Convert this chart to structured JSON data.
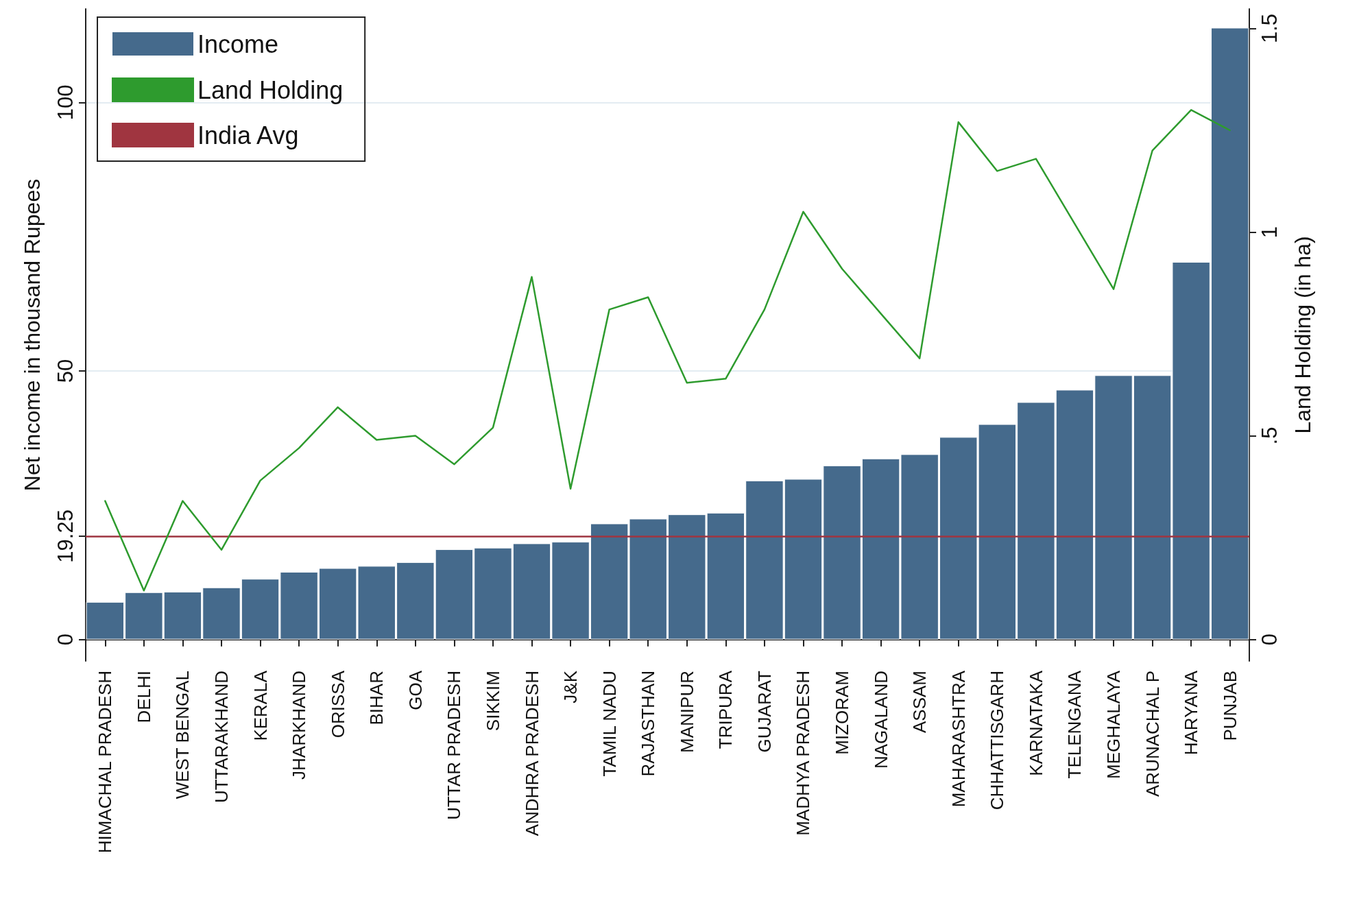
{
  "chart_data": {
    "type": "bar",
    "ylabel": "Net income in thousand Rupees",
    "y2label": "Land Holding (in ha)",
    "categories": [
      "HIMACHAL PRADESH",
      "DELHI",
      "WEST BENGAL",
      "UTTARAKHAND",
      "KERALA",
      "JHARKHAND",
      "ORISSA",
      "BIHAR",
      "GOA",
      "UTTAR PRADESH",
      "SIKKIM",
      "ANDHRA PRADESH",
      "J&K",
      "TAMIL NADU",
      "RAJASTHAN",
      "MANIPUR",
      "TRIPURA",
      "GUJARAT",
      "MADHYA PRADESH",
      "MIZORAM",
      "NAGALAND",
      "ASSAM",
      "MAHARASHTRA",
      "CHHATTISGARH",
      "KARNATAKA",
      "TELENGANA",
      "MEGHALAYA",
      "ARUNACHAL P",
      "HARYANA",
      "PUNJAB"
    ],
    "series": [
      {
        "name": "Income",
        "type": "bar",
        "color": "#456a8c",
        "values": [
          7.0,
          8.8,
          8.9,
          9.7,
          11.3,
          12.6,
          13.3,
          13.7,
          14.4,
          16.8,
          17.1,
          17.9,
          18.2,
          21.6,
          22.5,
          23.3,
          23.6,
          29.6,
          29.9,
          32.4,
          33.7,
          34.5,
          37.7,
          40.1,
          44.2,
          46.5,
          49.2,
          49.2,
          70.3,
          113.9
        ]
      },
      {
        "name": "Land Holding",
        "type": "line",
        "axis": "y2",
        "color": "#2e9b2e",
        "values": [
          0.34,
          0.12,
          0.34,
          0.22,
          0.39,
          0.47,
          0.57,
          0.49,
          0.5,
          0.43,
          0.52,
          0.89,
          0.37,
          0.81,
          0.84,
          0.63,
          0.64,
          0.81,
          1.05,
          0.91,
          0.8,
          0.69,
          1.27,
          1.15,
          1.18,
          1.02,
          0.86,
          1.2,
          1.3,
          1.25
        ]
      }
    ],
    "ref_lines": [
      {
        "axis": "y",
        "value": 19.25,
        "label": "India Avg",
        "color": "#a03540"
      }
    ],
    "ylim": [
      -4,
      117.4
    ],
    "yticks": [
      0,
      19.25,
      50,
      100
    ],
    "y2lim": [
      -0.053,
      1.548
    ],
    "y2ticks": [
      0,
      {
        "value": 0.5,
        "label": ".5"
      },
      1,
      1.5
    ],
    "grid": "y",
    "legend": "top left",
    "marker": "none",
    "line_style": "solid"
  }
}
